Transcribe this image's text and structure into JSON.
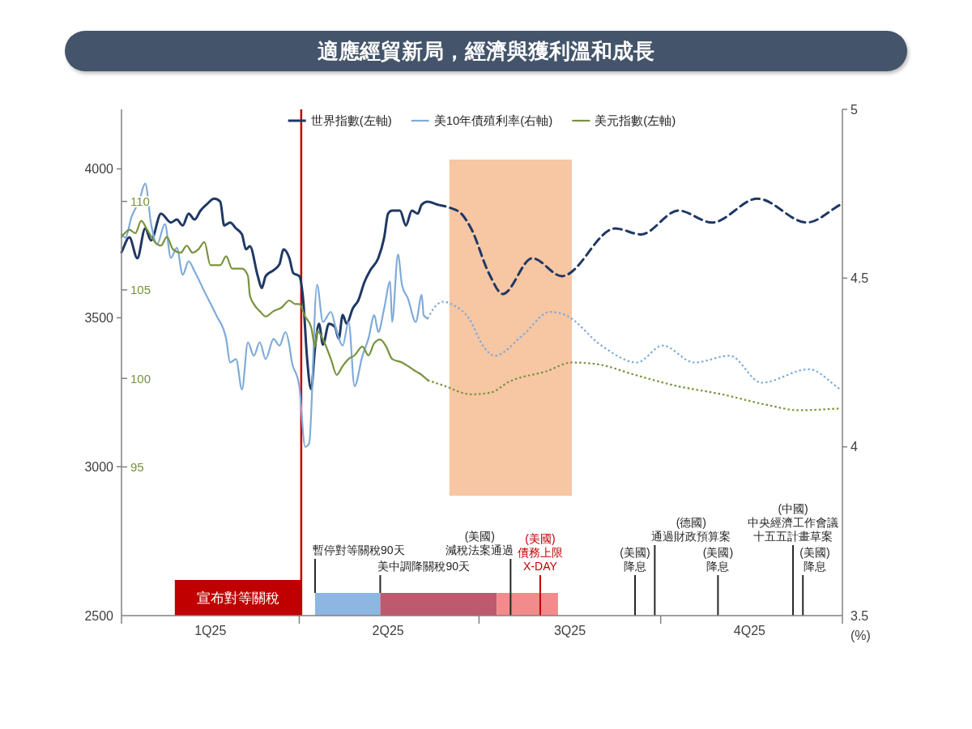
{
  "chart_data": {
    "type": "line",
    "title": "適應經貿新局，經濟與獲利溫和成長",
    "xlim": [
      "2025-01-01",
      "2026-01-01"
    ],
    "xticks": [
      {
        "value": "2025-01-01",
        "label": null
      },
      {
        "value": "2025-02-15",
        "label": "1Q25"
      },
      {
        "value": "2025-04-01",
        "label": null
      },
      {
        "value": "2025-05-16",
        "label": "2Q25"
      },
      {
        "value": "2025-07-01",
        "label": null
      },
      {
        "value": "2025-08-16",
        "label": "3Q25"
      },
      {
        "value": "2025-10-01",
        "label": null
      },
      {
        "value": "2025-11-15",
        "label": "4Q25"
      },
      {
        "value": "2026-01-01",
        "label": null
      }
    ],
    "ylim": [
      2500,
      4200
    ],
    "yticks": [
      2500,
      3000,
      3500,
      4000
    ],
    "y2lim": [
      3.5,
      5
    ],
    "y2ticks": [
      3.5,
      4,
      4.5,
      5
    ],
    "y2label": "(%)",
    "y3lim": [
      86.6,
      115.2
    ],
    "y3ticks": [
      95,
      100,
      105,
      110
    ],
    "legend": "top",
    "series": [
      {
        "name": "世界指數(左軸)",
        "color": "#1f3864",
        "x": [
          "2025-01-01",
          "2025-01-05",
          "2025-01-09",
          "2025-01-13",
          "2025-01-16",
          "2025-01-21",
          "2025-01-26",
          "2025-01-29",
          "2025-02-01",
          "2025-02-04",
          "2025-02-07",
          "2025-02-10",
          "2025-02-13",
          "2025-02-17",
          "2025-02-20",
          "2025-02-22",
          "2025-02-25",
          "2025-02-28",
          "2025-03-03",
          "2025-03-05",
          "2025-03-07",
          "2025-03-11",
          "2025-03-13",
          "2025-03-15",
          "2025-03-19",
          "2025-03-22",
          "2025-03-24",
          "2025-03-27",
          "2025-03-29",
          "2025-04-01",
          "2025-04-03",
          "2025-04-05",
          "2025-04-07",
          "2025-04-09",
          "2025-04-11",
          "2025-04-13",
          "2025-04-16",
          "2025-04-19",
          "2025-04-21",
          "2025-04-23",
          "2025-04-25",
          "2025-04-28",
          "2025-05-01",
          "2025-05-04",
          "2025-05-07",
          "2025-05-11",
          "2025-05-14",
          "2025-05-16",
          "2025-05-18",
          "2025-05-22",
          "2025-05-25",
          "2025-05-28",
          "2025-05-31",
          "2025-06-02",
          "2025-06-05",
          "2025-06-10"
        ],
        "values": [
          3720,
          3770,
          3700,
          3800,
          3760,
          3850,
          3820,
          3830,
          3810,
          3850,
          3830,
          3860,
          3880,
          3900,
          3890,
          3810,
          3820,
          3800,
          3780,
          3730,
          3740,
          3640,
          3600,
          3640,
          3660,
          3680,
          3730,
          3700,
          3650,
          3640,
          3560,
          3360,
          3260,
          3400,
          3480,
          3410,
          3480,
          3470,
          3430,
          3510,
          3480,
          3530,
          3560,
          3620,
          3660,
          3700,
          3770,
          3850,
          3860,
          3860,
          3810,
          3860,
          3850,
          3880,
          3890,
          3880
        ]
      },
      {
        "color": "#1f3864",
        "line_style": "dashed",
        "x": [
          "2025-06-10",
          "2025-06-16",
          "2025-06-22",
          "2025-06-27",
          "2025-07-06",
          "2025-07-13",
          "2025-07-28",
          "2025-08-12",
          "2025-09-08",
          "2025-09-21",
          "2025-10-10",
          "2025-10-27",
          "2025-11-19",
          "2025-12-14",
          "2025-12-31"
        ],
        "values": [
          3880,
          3870,
          3850,
          3800,
          3650,
          3580,
          3700,
          3640,
          3800,
          3780,
          3860,
          3820,
          3900,
          3820,
          3880
        ]
      },
      {
        "name": "美10年債殖利率(右軸)",
        "color": "#7fabd9",
        "axis": "y2",
        "x": [
          "2025-01-01",
          "2025-01-03",
          "2025-01-06",
          "2025-01-10",
          "2025-01-13",
          "2025-01-16",
          "2025-01-19",
          "2025-01-23",
          "2025-01-26",
          "2025-01-29",
          "2025-02-01",
          "2025-02-04",
          "2025-02-07",
          "2025-02-12",
          "2025-02-18",
          "2025-02-23",
          "2025-02-25",
          "2025-02-28",
          "2025-03-03",
          "2025-03-06",
          "2025-03-09",
          "2025-03-12",
          "2025-03-15",
          "2025-03-19",
          "2025-03-22",
          "2025-03-25",
          "2025-03-27",
          "2025-03-28",
          "2025-04-01",
          "2025-04-04",
          "2025-04-06",
          "2025-04-10",
          "2025-04-13",
          "2025-04-17",
          "2025-04-20",
          "2025-04-23",
          "2025-04-26",
          "2025-04-29",
          "2025-05-03",
          "2025-05-06",
          "2025-05-09",
          "2025-05-11",
          "2025-05-14",
          "2025-05-17",
          "2025-05-18",
          "2025-05-21",
          "2025-05-23",
          "2025-05-26",
          "2025-05-30",
          "2025-06-02",
          "2025-06-03",
          "2025-06-05"
        ],
        "values": [
          4.63,
          4.62,
          4.68,
          4.73,
          4.78,
          4.66,
          4.6,
          4.66,
          4.56,
          4.59,
          4.51,
          4.55,
          4.52,
          4.46,
          4.39,
          4.32,
          4.25,
          4.26,
          4.17,
          4.31,
          4.27,
          4.31,
          4.26,
          4.32,
          4.3,
          4.34,
          4.3,
          4.26,
          4.18,
          4.0,
          4.01,
          4.48,
          4.37,
          4.4,
          4.34,
          4.3,
          4.37,
          4.18,
          4.27,
          4.32,
          4.39,
          4.34,
          4.41,
          4.49,
          4.37,
          4.57,
          4.48,
          4.44,
          4.37,
          4.45,
          4.39,
          4.38
        ]
      },
      {
        "color": "#7fabd9",
        "axis": "y2",
        "line_style": "dotted",
        "x": [
          "2025-06-05",
          "2025-06-08",
          "2025-06-13",
          "2025-06-18",
          "2025-06-26",
          "2025-07-03",
          "2025-07-09",
          "2025-07-23",
          "2025-08-06",
          "2025-08-14",
          "2025-09-01",
          "2025-09-19",
          "2025-10-02",
          "2025-10-18",
          "2025-11-05",
          "2025-11-21",
          "2025-12-15",
          "2025-12-31"
        ],
        "values": [
          4.38,
          4.41,
          4.43,
          4.42,
          4.38,
          4.3,
          4.27,
          4.33,
          4.4,
          4.39,
          4.3,
          4.25,
          4.3,
          4.25,
          4.27,
          4.19,
          4.23,
          4.17
        ]
      },
      {
        "name": "美元指數(左軸)",
        "color": "#77933c",
        "axis": "y3",
        "x": [
          "2025-01-01",
          "2025-01-05",
          "2025-01-08",
          "2025-01-11",
          "2025-01-14",
          "2025-01-18",
          "2025-01-21",
          "2025-01-24",
          "2025-01-27",
          "2025-01-31",
          "2025-02-03",
          "2025-02-06",
          "2025-02-09",
          "2025-02-12",
          "2025-02-15",
          "2025-02-20",
          "2025-02-23",
          "2025-02-26",
          "2025-03-03",
          "2025-03-06",
          "2025-03-07",
          "2025-03-09",
          "2025-03-12",
          "2025-03-15",
          "2025-03-19",
          "2025-03-23",
          "2025-03-27",
          "2025-03-30",
          "2025-04-01",
          "2025-04-04",
          "2025-04-07",
          "2025-04-09",
          "2025-04-10",
          "2025-04-13",
          "2025-04-17",
          "2025-04-20",
          "2025-04-23",
          "2025-04-26",
          "2025-04-29",
          "2025-05-03",
          "2025-05-06",
          "2025-05-09",
          "2025-05-12",
          "2025-05-15",
          "2025-05-18",
          "2025-05-23",
          "2025-05-26",
          "2025-05-30",
          "2025-06-02",
          "2025-06-05"
        ],
        "values": [
          108.0,
          108.4,
          108.2,
          108.9,
          108.4,
          107.7,
          107.5,
          108.0,
          107.3,
          107.1,
          107.5,
          107.1,
          107.3,
          107.7,
          106.4,
          106.4,
          106.9,
          106.2,
          106.2,
          105.8,
          104.7,
          104.2,
          103.8,
          103.5,
          103.8,
          104.0,
          104.4,
          104.2,
          104.2,
          103.5,
          102.9,
          101.8,
          102.7,
          102.2,
          101.1,
          100.2,
          100.7,
          101.1,
          101.3,
          101.8,
          101.3,
          102.0,
          102.2,
          101.8,
          101.1,
          100.9,
          100.7,
          100.4,
          100.2,
          99.9
        ]
      },
      {
        "color": "#77933c",
        "axis": "y3",
        "line_style": "dotted",
        "x": [
          "2025-06-05",
          "2025-06-13",
          "2025-06-27",
          "2025-07-07",
          "2025-07-16",
          "2025-08-04",
          "2025-08-17",
          "2025-08-30",
          "2025-09-18",
          "2025-10-08",
          "2025-11-01",
          "2025-11-24",
          "2025-12-10",
          "2025-12-31"
        ],
        "values": [
          99.9,
          99.6,
          99.1,
          99.2,
          99.8,
          100.4,
          100.9,
          100.8,
          100.2,
          99.6,
          99.1,
          98.5,
          98.2,
          98.3
        ]
      }
    ],
    "bands": [
      {
        "axis": "x",
        "from": "2025-06-16",
        "to": "2025-08-17",
        "color": "#f7c6a3"
      },
      {
        "axis": "x",
        "from": "2025-01-28",
        "to": "2025-04-02",
        "label": "宣布對等關稅",
        "color": "#c00000"
      },
      {
        "axis": "x",
        "from": "2025-04-09",
        "to": "2025-05-12",
        "label": "暫停對等關稅90天",
        "color": "#8db6e0"
      },
      {
        "axis": "x",
        "from": "2025-05-12",
        "to": "2025-07-10",
        "label": "美中調降關稅90天",
        "color": "#be5a6e"
      },
      {
        "axis": "x",
        "from": "2025-07-10",
        "to": "2025-08-10",
        "label": null,
        "color": "#f28b8b"
      }
    ],
    "ref_lines": [
      {
        "axis": "x",
        "value": "2025-04-02",
        "color": "#c00000"
      },
      {
        "axis": "x",
        "value": "2025-07-17",
        "label": "(美國)\n減稅法案通過",
        "color": "#262626"
      },
      {
        "axis": "x",
        "value": "2025-08-01",
        "label": "(美國)\n債務上限\nX-DAY",
        "color": "#c00000"
      },
      {
        "axis": "x",
        "value": "2025-09-18",
        "label": "(美國)\n降息",
        "color": "#262626"
      },
      {
        "axis": "x",
        "value": "2025-09-28",
        "label": "(德國)\n通過財政預算案",
        "color": "#262626"
      },
      {
        "axis": "x",
        "value": "2025-10-30",
        "label": "(美國)\n降息",
        "color": "#262626"
      },
      {
        "axis": "x",
        "value": "2025-12-07",
        "label": "(中國)\n中央經濟工作會議十五五計畫草案",
        "color": "#262626"
      },
      {
        "axis": "x",
        "value": "2025-12-12",
        "label": "(美國)\n降息",
        "color": "#262626"
      }
    ]
  }
}
